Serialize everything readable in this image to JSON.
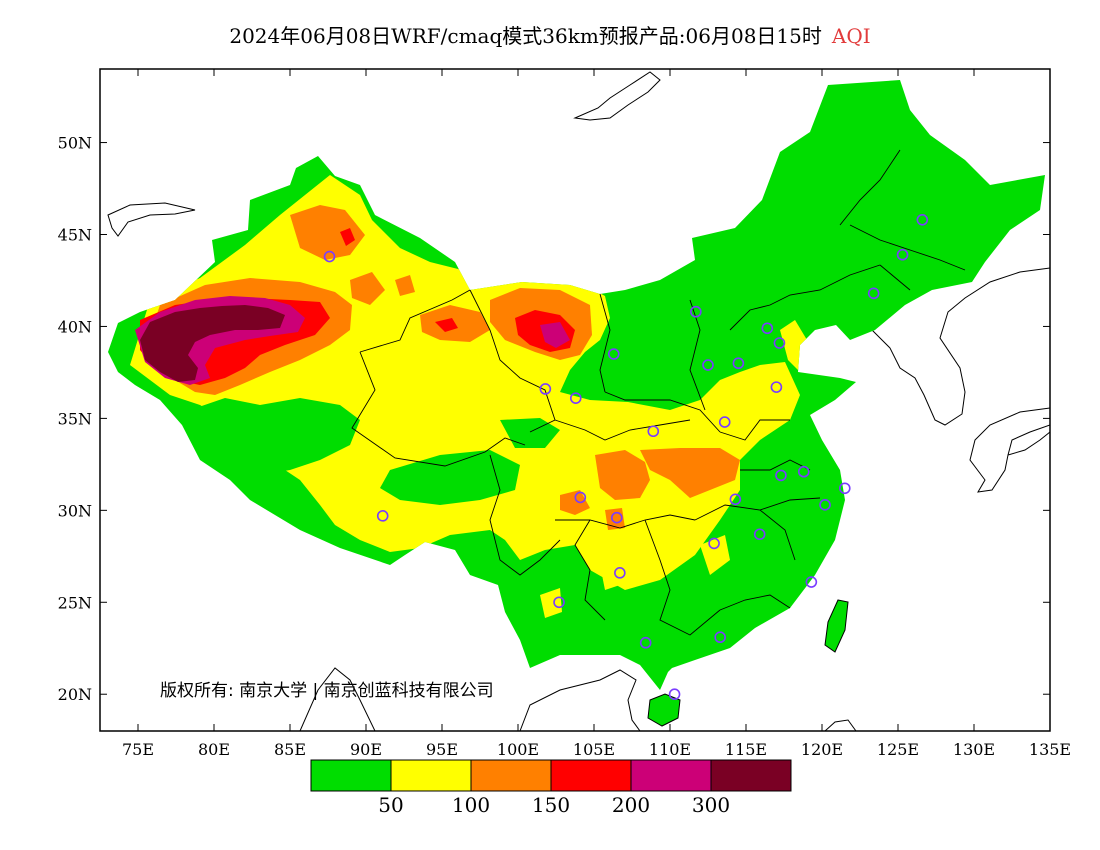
{
  "title": {
    "main": "2024年06月08日WRF/cmaq模式36km预报产品:06月08日15时",
    "variable": "AQI"
  },
  "map": {
    "lon_range": [
      72.5,
      135
    ],
    "lat_range": [
      18,
      54
    ],
    "x_ticks": [
      {
        "lon": 75,
        "label": "75E"
      },
      {
        "lon": 80,
        "label": "80E"
      },
      {
        "lon": 85,
        "label": "85E"
      },
      {
        "lon": 90,
        "label": "90E"
      },
      {
        "lon": 95,
        "label": "95E"
      },
      {
        "lon": 100,
        "label": "100E"
      },
      {
        "lon": 105,
        "label": "105E"
      },
      {
        "lon": 110,
        "label": "110E"
      },
      {
        "lon": 115,
        "label": "115E"
      },
      {
        "lon": 120,
        "label": "120E"
      },
      {
        "lon": 125,
        "label": "125E"
      },
      {
        "lon": 130,
        "label": "130E"
      },
      {
        "lon": 135,
        "label": "135E"
      }
    ],
    "y_ticks": [
      {
        "lat": 50,
        "label": "50N"
      },
      {
        "lat": 45,
        "label": "45N"
      },
      {
        "lat": 40,
        "label": "40N"
      },
      {
        "lat": 35,
        "label": "35N"
      },
      {
        "lat": 30,
        "label": "30N"
      },
      {
        "lat": 25,
        "label": "25N"
      },
      {
        "lat": 20,
        "label": "20N"
      }
    ],
    "stations": [
      [
        87.6,
        43.8
      ],
      [
        91.1,
        29.7
      ],
      [
        101.8,
        36.6
      ],
      [
        103.8,
        36.1
      ],
      [
        106.3,
        38.5
      ],
      [
        111.7,
        40.8
      ],
      [
        112.5,
        37.9
      ],
      [
        114.5,
        38.0
      ],
      [
        116.4,
        39.9
      ],
      [
        117.2,
        39.1
      ],
      [
        117.0,
        36.7
      ],
      [
        113.6,
        34.8
      ],
      [
        108.9,
        34.3
      ],
      [
        104.1,
        30.7
      ],
      [
        106.5,
        29.6
      ],
      [
        106.7,
        26.6
      ],
      [
        102.7,
        25.0
      ],
      [
        108.4,
        22.8
      ],
      [
        113.3,
        23.1
      ],
      [
        110.3,
        20.0
      ],
      [
        112.9,
        28.2
      ],
      [
        115.9,
        28.7
      ],
      [
        114.3,
        30.6
      ],
      [
        117.3,
        31.9
      ],
      [
        118.8,
        32.1
      ],
      [
        120.2,
        30.3
      ],
      [
        121.5,
        31.2
      ],
      [
        119.3,
        26.1
      ],
      [
        123.4,
        41.8
      ],
      [
        125.3,
        43.9
      ],
      [
        126.6,
        45.8
      ]
    ],
    "copyright": "版权所有: 南京大学 | 南京创蓝科技有限公司"
  },
  "legend": {
    "colors": [
      "#00dd00",
      "#ffff00",
      "#ff8000",
      "#ff0000",
      "#cc0077",
      "#7a0024"
    ],
    "labels": [
      "50",
      "100",
      "150",
      "200",
      "300"
    ],
    "categories": [
      "0-50",
      "50-100",
      "100-150",
      "150-200",
      "200-300",
      ">300"
    ]
  }
}
